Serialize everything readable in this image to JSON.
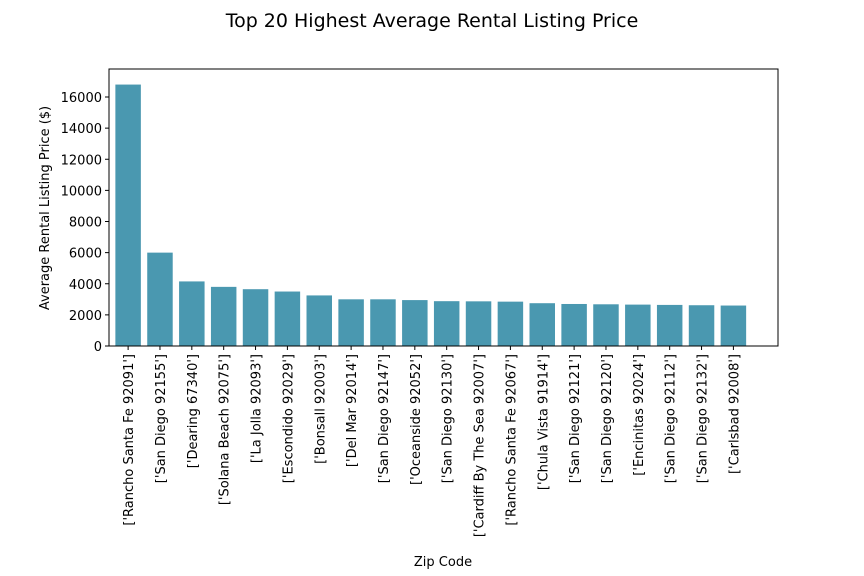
{
  "chart_data": {
    "type": "bar",
    "title": "Top 20 Highest Average Rental Listing Price",
    "xlabel": "Zip Code",
    "ylabel": "Average Rental Listing Price ($)",
    "ylim": [
      0,
      17800
    ],
    "yticks": [
      0,
      2000,
      4000,
      6000,
      8000,
      10000,
      12000,
      14000,
      16000
    ],
    "grid": false,
    "bar_color": "#4a98b0",
    "categories": [
      "['Rancho Santa Fe 92091']",
      "['San Diego 92155']",
      "['Dearing 67340']",
      "['Solana Beach 92075']",
      "['La Jolla 92093']",
      "['Escondido 92029']",
      "['Bonsall 92003']",
      "['Del Mar 92014']",
      "['San Diego 92147']",
      "['Oceanside 92052']",
      "['San Diego 92130']",
      "['Cardiff By The Sea 92007']",
      "['Rancho Santa Fe 92067']",
      "['Chula Vista 91914']",
      "['San Diego 92121']",
      "['San Diego 92120']",
      "['Encinitas 92024']",
      "['San Diego 92112']",
      "['San Diego 92132']",
      "['Carlsbad 92008']"
    ],
    "values": [
      16800,
      6000,
      4150,
      3800,
      3650,
      3500,
      3250,
      3000,
      3000,
      2950,
      2880,
      2870,
      2850,
      2750,
      2700,
      2680,
      2660,
      2640,
      2620,
      2600
    ]
  }
}
